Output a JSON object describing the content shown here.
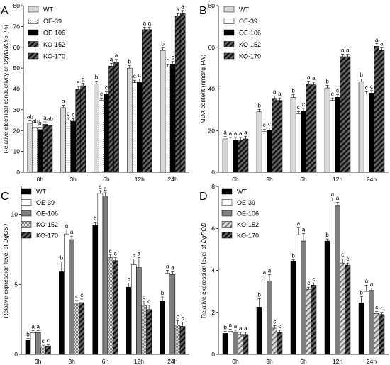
{
  "chart_data": [
    {
      "type": "bar",
      "panel_letter": "A",
      "ylabel_prefix": "Relative electrical conductivity of ",
      "ylabel_gene": "DgWRKY6",
      "ylabel_suffix": " (%)",
      "ylim": [
        0,
        80
      ],
      "yticks": [
        0,
        10,
        20,
        30,
        40,
        50,
        60,
        70,
        80
      ],
      "categories": [
        "0h",
        "3h",
        "6h",
        "12h",
        "24h"
      ],
      "legend_position": "top-left",
      "series": [
        {
          "name": "WT",
          "values": [
            23.5,
            31,
            42.5,
            50,
            58.5
          ],
          "errors": [
            1.2,
            1.2,
            1.2,
            1.2,
            1.2
          ],
          "letters": [
            "ab",
            "b",
            "b",
            "b",
            "b"
          ]
        },
        {
          "name": "OE-39",
          "values": [
            21.5,
            25,
            34.5,
            43,
            50.5
          ],
          "errors": [
            1.2,
            1.2,
            1.2,
            1.2,
            1.2
          ],
          "letters": [
            "ab",
            "c",
            "c",
            "c",
            "c"
          ]
        },
        {
          "name": "OE-106",
          "values": [
            20.5,
            24.5,
            37.5,
            43.5,
            52
          ],
          "errors": [
            1.2,
            1.2,
            1.2,
            1.2,
            1.2
          ],
          "letters": [
            "b",
            "c",
            "c",
            "c",
            "c"
          ]
        },
        {
          "name": "KO-152",
          "values": [
            23,
            40,
            51,
            68.5,
            75
          ],
          "errors": [
            1.2,
            1.2,
            1.2,
            1.2,
            1.2
          ],
          "letters": [
            "a",
            "a",
            "a",
            "a",
            "a"
          ]
        },
        {
          "name": "KO-170",
          "values": [
            22.5,
            41.5,
            53,
            68.5,
            76.5
          ],
          "errors": [
            1.2,
            1.2,
            1.2,
            1.2,
            1.2
          ],
          "letters": [
            "ab",
            "a",
            "a",
            "a",
            "a"
          ]
        }
      ]
    },
    {
      "type": "bar",
      "panel_letter": "B",
      "ylabel_prefix": "MDA content (nmol/g FW)",
      "ylabel_gene": "",
      "ylabel_suffix": "",
      "ylim": [
        0,
        80
      ],
      "yticks": [
        0,
        20,
        40,
        60,
        80
      ],
      "categories": [
        "0h",
        "3h",
        "6h",
        "12h",
        "24h"
      ],
      "legend_position": "top-left",
      "series": [
        {
          "name": "WT",
          "values": [
            16,
            29,
            36,
            40.5,
            43.5
          ],
          "errors": [
            1.2,
            1.2,
            1.2,
            1.2,
            1.2
          ],
          "letters": [
            "a",
            "b",
            "b",
            "b",
            "b"
          ]
        },
        {
          "name": "OE-39",
          "values": [
            15.5,
            19.5,
            28,
            34.5,
            37.5
          ],
          "errors": [
            1.2,
            1.2,
            1.2,
            1.2,
            1.2
          ],
          "letters": [
            "a",
            "c",
            "c",
            "c",
            "c"
          ]
        },
        {
          "name": "OE-106",
          "values": [
            15.5,
            20,
            29.5,
            36,
            38
          ],
          "errors": [
            1.2,
            1.2,
            1.2,
            1.2,
            1.2
          ],
          "letters": [
            "a",
            "c",
            "c",
            "c",
            "c"
          ]
        },
        {
          "name": "KO-152",
          "values": [
            15.5,
            35.5,
            42.5,
            55.5,
            60.5
          ],
          "errors": [
            1.2,
            1.2,
            1.2,
            1.2,
            1.2
          ],
          "letters": [
            "a",
            "a",
            "a",
            "a",
            "a"
          ]
        },
        {
          "name": "KO-170",
          "values": [
            16,
            34.5,
            42,
            55.5,
            58.5
          ],
          "errors": [
            1.2,
            1.2,
            1.2,
            1.2,
            1.2
          ],
          "letters": [
            "a",
            "a",
            "a",
            "a",
            "a"
          ]
        }
      ]
    },
    {
      "type": "bar",
      "panel_letter": "C",
      "ylabel_prefix": "Relative expression level of ",
      "ylabel_gene": "DgGST",
      "ylabel_suffix": "",
      "ylim": [
        0,
        12
      ],
      "yticks": [
        0,
        5,
        10
      ],
      "categories": [
        "0h",
        "3h",
        "6h",
        "12h",
        "24h"
      ],
      "legend_position": "top-left",
      "series": [
        {
          "name": "WT",
          "values": [
            1.0,
            5.9,
            9.2,
            4.8,
            3.8
          ],
          "errors": [
            0.15,
            0.7,
            0.25,
            0.3,
            0.3
          ],
          "letters": [
            "b",
            "b",
            "b",
            "b",
            "b"
          ]
        },
        {
          "name": "OE-39",
          "values": [
            1.55,
            8.6,
            11.5,
            6.4,
            5.8
          ],
          "errors": [
            0.15,
            0.3,
            0.2,
            0.4,
            0.2
          ],
          "letters": [
            "a",
            "a",
            "a",
            "a",
            "a"
          ]
        },
        {
          "name": "OE-106",
          "values": [
            1.55,
            8.2,
            11.3,
            6.2,
            5.7
          ],
          "errors": [
            0.15,
            0.25,
            0.25,
            0.7,
            0.2
          ],
          "letters": [
            "a",
            "a",
            "a",
            "a",
            "a"
          ]
        },
        {
          "name": "KO-152",
          "values": [
            0.55,
            3.6,
            6.9,
            3.5,
            2.1
          ],
          "errors": [
            0.1,
            0.25,
            0.2,
            0.3,
            0.3
          ],
          "letters": [
            "c",
            "c",
            "c",
            "c",
            "c"
          ]
        },
        {
          "name": "KO-170",
          "values": [
            0.6,
            3.7,
            6.7,
            3.2,
            2.0
          ],
          "errors": [
            0.1,
            0.25,
            0.2,
            0.3,
            0.3
          ],
          "letters": [
            "c",
            "c",
            "c",
            "c",
            "c"
          ]
        }
      ]
    },
    {
      "type": "bar",
      "panel_letter": "D",
      "ylabel_prefix": "Relative expression level of ",
      "ylabel_gene": "DgPOD",
      "ylabel_suffix": "",
      "ylim": [
        0,
        8
      ],
      "yticks": [
        0,
        2,
        4,
        6,
        8
      ],
      "categories": [
        "0h",
        "3h",
        "6h",
        "12h",
        "24h"
      ],
      "legend_position": "top-left",
      "series": [
        {
          "name": "WT",
          "values": [
            1.0,
            2.25,
            4.45,
            5.4,
            2.45
          ],
          "errors": [
            0.1,
            0.4,
            0.05,
            0.1,
            0.3
          ],
          "letters": [
            "b",
            "b",
            "b",
            "b",
            "b"
          ]
        },
        {
          "name": "OE-39",
          "values": [
            1.1,
            3.6,
            5.7,
            7.3,
            3.0
          ],
          "errors": [
            0.1,
            0.12,
            0.35,
            0.15,
            0.3
          ],
          "letters": [
            "a",
            "a",
            "a",
            "a",
            "a"
          ]
        },
        {
          "name": "OE-106",
          "values": [
            1.05,
            3.5,
            5.4,
            7.1,
            3.05
          ],
          "errors": [
            0.1,
            0.3,
            0.35,
            0.15,
            0.1
          ],
          "letters": [
            "a",
            "a",
            "a",
            "a",
            "a"
          ]
        },
        {
          "name": "KO-152",
          "values": [
            0.95,
            1.25,
            3.1,
            4.35,
            1.95
          ],
          "errors": [
            0.1,
            0.12,
            0.1,
            0.2,
            0.1
          ],
          "letters": [
            "a",
            "c",
            "c",
            "c",
            "c"
          ]
        },
        {
          "name": "KO-170",
          "values": [
            0.95,
            1.05,
            3.3,
            4.25,
            1.9
          ],
          "errors": [
            0.1,
            0.1,
            0.1,
            0.1,
            0.1
          ],
          "letters": [
            "a",
            "c",
            "c",
            "c",
            "c"
          ]
        }
      ]
    }
  ]
}
